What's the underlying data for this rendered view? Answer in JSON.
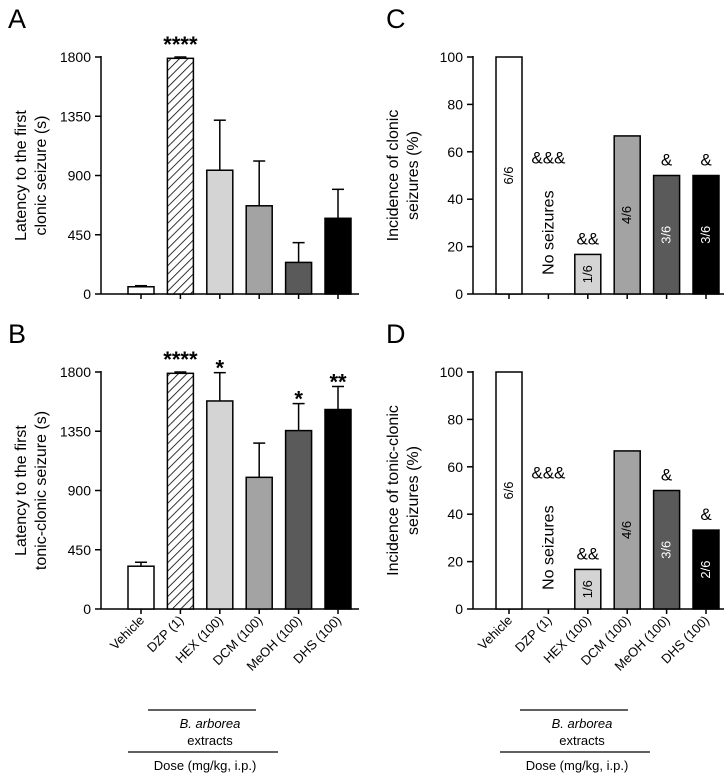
{
  "chart_data": [
    {
      "id": "A",
      "panel_label": "A",
      "type": "bar",
      "ylabel_lines": [
        "Latency to the first",
        "clonic seizure (s)"
      ],
      "ylim": [
        0,
        1800
      ],
      "yticks": [
        "0",
        "450",
        "900",
        "1350",
        "1800"
      ],
      "categories": [
        "Vehicle",
        "DZP (1)",
        "HEX (100)",
        "DCM (100)",
        "MeOH (100)",
        "DHS (100)"
      ],
      "values": [
        55,
        1790,
        940,
        670,
        240,
        575
      ],
      "errors": [
        8,
        10,
        380,
        340,
        150,
        220
      ],
      "fills": [
        "#ffffff",
        "hatch",
        "#d4d4d4",
        "#a3a3a3",
        "#5a5a5a",
        "#000000"
      ],
      "annotations": [
        "",
        "****",
        "",
        "",
        "",
        ""
      ],
      "in_bar_labels": [
        "",
        "",
        "",
        "",
        "",
        ""
      ],
      "in_bar_colors": [
        "#000000",
        "#000000",
        "#000000",
        "#000000",
        "#000000",
        "#000000"
      ],
      "no_seizure_text": ""
    },
    {
      "id": "B",
      "panel_label": "B",
      "type": "bar",
      "ylabel_lines": [
        "Latency to the first",
        "tonic-clonic seizure (s)"
      ],
      "ylim": [
        0,
        1800
      ],
      "yticks": [
        "0",
        "450",
        "900",
        "1350",
        "1800"
      ],
      "categories": [
        "Vehicle",
        "DZP (1)",
        "HEX (100)",
        "DCM (100)",
        "MeOH (100)",
        "DHS (100)"
      ],
      "values": [
        325,
        1790,
        1580,
        1000,
        1355,
        1515
      ],
      "errors": [
        30,
        10,
        215,
        260,
        205,
        175
      ],
      "fills": [
        "#ffffff",
        "hatch",
        "#d4d4d4",
        "#a3a3a3",
        "#5a5a5a",
        "#000000"
      ],
      "annotations": [
        "",
        "****",
        "*",
        "",
        "*",
        "**"
      ],
      "in_bar_labels": [
        "",
        "",
        "",
        "",
        "",
        ""
      ],
      "in_bar_colors": [
        "#000000",
        "#000000",
        "#000000",
        "#000000",
        "#000000",
        "#000000"
      ],
      "no_seizure_text": ""
    },
    {
      "id": "C",
      "panel_label": "C",
      "type": "bar",
      "ylabel_lines": [
        "Incidence of clonic",
        "seizures (%)"
      ],
      "ylim": [
        0,
        100
      ],
      "yticks": [
        "0",
        "20",
        "40",
        "60",
        "80",
        "100"
      ],
      "categories": [
        "Vehicle",
        "DZP (1)",
        "HEX (100)",
        "DCM (100)",
        "MeOH (100)",
        "DHS (100)"
      ],
      "values": [
        100,
        0,
        16.7,
        66.7,
        50,
        50
      ],
      "errors": [
        0,
        0,
        0,
        0,
        0,
        0
      ],
      "fills": [
        "#ffffff",
        "#ffffff",
        "#d4d4d4",
        "#a3a3a3",
        "#5a5a5a",
        "#000000"
      ],
      "annotations": [
        "",
        "&&&",
        "&&",
        "",
        "&",
        "&"
      ],
      "in_bar_labels": [
        "6/6",
        "",
        "1/6",
        "4/6",
        "3/6",
        "3/6"
      ],
      "in_bar_colors": [
        "#000000",
        "#000000",
        "#000000",
        "#000000",
        "#ffffff",
        "#ffffff"
      ],
      "no_seizure_text": "No seizures"
    },
    {
      "id": "D",
      "panel_label": "D",
      "type": "bar",
      "ylabel_lines": [
        "Incidence of tonic-clonic",
        "seizures (%)"
      ],
      "ylim": [
        0,
        100
      ],
      "yticks": [
        "0",
        "20",
        "40",
        "60",
        "80",
        "100"
      ],
      "categories": [
        "Vehicle",
        "DZP (1)",
        "HEX (100)",
        "DCM (100)",
        "MeOH (100)",
        "DHS (100)"
      ],
      "values": [
        100,
        0,
        16.7,
        66.7,
        50,
        33.3
      ],
      "errors": [
        0,
        0,
        0,
        0,
        0,
        0
      ],
      "fills": [
        "#ffffff",
        "#ffffff",
        "#d4d4d4",
        "#a3a3a3",
        "#5a5a5a",
        "#000000"
      ],
      "annotations": [
        "",
        "&&&",
        "&&",
        "",
        "&",
        "&"
      ],
      "in_bar_labels": [
        "6/6",
        "",
        "1/6",
        "4/6",
        "3/6",
        "2/6"
      ],
      "in_bar_colors": [
        "#000000",
        "#000000",
        "#000000",
        "#000000",
        "#ffffff",
        "#ffffff"
      ],
      "no_seizure_text": "No seizures"
    }
  ],
  "group_labels": {
    "extract_line1": "B. arborea",
    "extract_line2": "extracts",
    "dose": "Dose (mg/kg, i.p.)"
  }
}
